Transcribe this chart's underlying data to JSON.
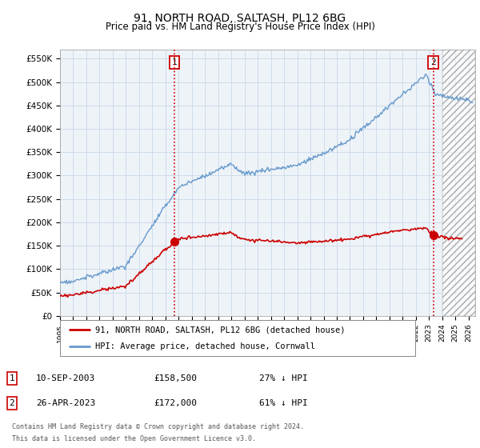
{
  "title": "91, NORTH ROAD, SALTASH, PL12 6BG",
  "subtitle": "Price paid vs. HM Land Registry's House Price Index (HPI)",
  "ylabel_ticks": [
    "£0",
    "£50K",
    "£100K",
    "£150K",
    "£200K",
    "£250K",
    "£300K",
    "£350K",
    "£400K",
    "£450K",
    "£500K",
    "£550K"
  ],
  "ytick_values": [
    0,
    50000,
    100000,
    150000,
    200000,
    250000,
    300000,
    350000,
    400000,
    450000,
    500000,
    550000
  ],
  "ylim": [
    0,
    570000
  ],
  "xlim_start": 1995.0,
  "xlim_end": 2026.5,
  "hpi_color": "#6699cc",
  "price_color": "#cc0000",
  "marker1_date": 2003.69,
  "marker1_price": 158500,
  "marker2_date": 2023.32,
  "marker2_price": 172000,
  "vline_color": "#cc0000",
  "background_color": "#ffffff",
  "grid_color": "#c8d8e8",
  "chart_bg_color": "#eef3f8",
  "legend_line1": "91, NORTH ROAD, SALTASH, PL12 6BG (detached house)",
  "legend_line2": "HPI: Average price, detached house, Cornwall",
  "note1_label": "1",
  "note1_date": "10-SEP-2003",
  "note1_price": "£158,500",
  "note1_hpi": "27% ↓ HPI",
  "note2_label": "2",
  "note2_date": "26-APR-2023",
  "note2_price": "£172,000",
  "note2_hpi": "61% ↓ HPI",
  "footer": "Contains HM Land Registry data © Crown copyright and database right 2024.\nThis data is licensed under the Open Government Licence v3.0."
}
